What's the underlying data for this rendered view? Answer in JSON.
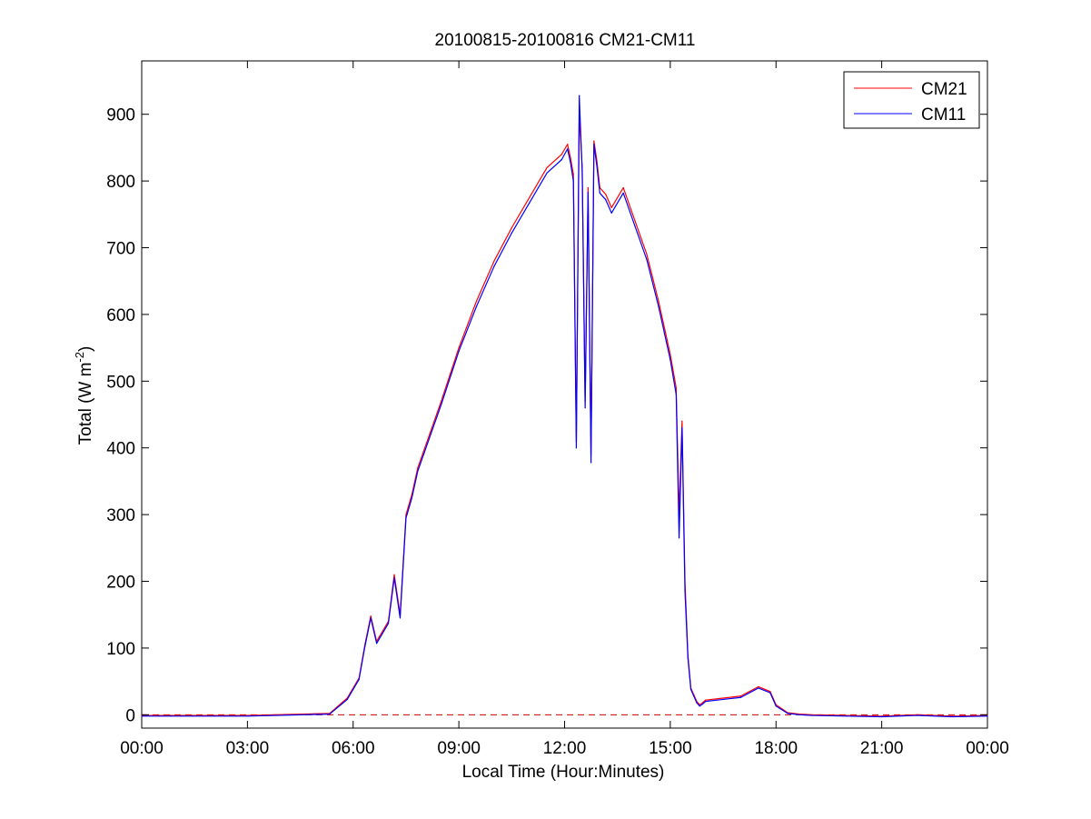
{
  "chart_data": {
    "type": "line",
    "title": "20100815-20100816 CM21-CM11",
    "xlabel": "Local Time (Hour:Minutes)",
    "ylabel": {
      "base": "Total (W m",
      "exp": "-2",
      "close": ")"
    },
    "xlim_hours": [
      0,
      24
    ],
    "ylim": [
      -20,
      980
    ],
    "x_ticks": [
      {
        "hour": 0,
        "label": "00:00"
      },
      {
        "hour": 3,
        "label": "03:00"
      },
      {
        "hour": 6,
        "label": "06:00"
      },
      {
        "hour": 9,
        "label": "09:00"
      },
      {
        "hour": 12,
        "label": "12:00"
      },
      {
        "hour": 15,
        "label": "15:00"
      },
      {
        "hour": 18,
        "label": "18:00"
      },
      {
        "hour": 21,
        "label": "21:00"
      },
      {
        "hour": 24,
        "label": "00:00"
      }
    ],
    "y_ticks": [
      0,
      100,
      200,
      300,
      400,
      500,
      600,
      700,
      800,
      900
    ],
    "grid": false,
    "legend_position": "top-right",
    "zero_line": {
      "value": 0,
      "color": "#cc0000",
      "style": "dashed"
    },
    "series": [
      {
        "name": "CM21",
        "color": "#ff0000",
        "x": [
          "00:00",
          "03:00",
          "05:20",
          "05:50",
          "06:10",
          "06:20",
          "06:30",
          "06:40",
          "06:50",
          "07:00",
          "07:10",
          "07:20",
          "07:30",
          "07:40",
          "07:50",
          "08:00",
          "08:30",
          "09:00",
          "09:30",
          "10:00",
          "10:30",
          "11:00",
          "11:30",
          "11:55",
          "12:05",
          "12:10",
          "12:15",
          "12:20",
          "12:25",
          "12:30",
          "12:35",
          "12:40",
          "12:45",
          "12:50",
          "12:55",
          "13:00",
          "13:10",
          "13:20",
          "13:40",
          "14:00",
          "14:20",
          "14:40",
          "15:00",
          "15:10",
          "15:15",
          "15:20",
          "15:25",
          "15:30",
          "15:35",
          "15:40",
          "15:45",
          "15:50",
          "15:55",
          "16:00",
          "16:30",
          "17:00",
          "17:30",
          "17:50",
          "18:00",
          "18:20",
          "18:40",
          "19:00",
          "20:00",
          "21:00",
          "22:00",
          "23:00",
          "24:00"
        ],
        "y": [
          -1,
          -1,
          2,
          25,
          55,
          105,
          148,
          110,
          125,
          140,
          210,
          150,
          300,
          330,
          370,
          395,
          470,
          550,
          620,
          680,
          730,
          775,
          820,
          840,
          855,
          835,
          810,
          410,
          900,
          820,
          470,
          790,
          390,
          860,
          830,
          790,
          780,
          760,
          790,
          740,
          690,
          620,
          540,
          490,
          300,
          440,
          200,
          90,
          40,
          30,
          20,
          15,
          18,
          22,
          25,
          28,
          42,
          35,
          15,
          3,
          1,
          0,
          -1,
          -2,
          0,
          -2,
          -1
        ]
      },
      {
        "name": "CM11",
        "color": "#0000ff",
        "x": [
          "00:00",
          "03:00",
          "05:20",
          "05:50",
          "06:10",
          "06:20",
          "06:30",
          "06:40",
          "06:50",
          "07:00",
          "07:10",
          "07:20",
          "07:30",
          "07:40",
          "07:50",
          "08:00",
          "08:30",
          "09:00",
          "09:30",
          "10:00",
          "10:30",
          "11:00",
          "11:30",
          "11:55",
          "12:05",
          "12:10",
          "12:15",
          "12:20",
          "12:25",
          "12:30",
          "12:35",
          "12:40",
          "12:45",
          "12:50",
          "12:55",
          "13:00",
          "13:10",
          "13:20",
          "13:40",
          "14:00",
          "14:20",
          "14:40",
          "15:00",
          "15:10",
          "15:15",
          "15:20",
          "15:25",
          "15:30",
          "15:35",
          "15:40",
          "15:45",
          "15:50",
          "15:55",
          "16:00",
          "16:30",
          "17:00",
          "17:30",
          "17:50",
          "18:00",
          "18:20",
          "18:40",
          "19:00",
          "20:00",
          "21:00",
          "22:00",
          "23:00",
          "24:00"
        ],
        "y": [
          -2,
          -2,
          1,
          23,
          53,
          102,
          145,
          107,
          122,
          137,
          205,
          145,
          295,
          325,
          365,
          390,
          465,
          545,
          612,
          672,
          722,
          767,
          812,
          832,
          848,
          828,
          800,
          400,
          928,
          815,
          460,
          783,
          378,
          855,
          822,
          782,
          772,
          752,
          782,
          732,
          682,
          612,
          532,
          480,
          265,
          430,
          185,
          85,
          38,
          28,
          18,
          13,
          16,
          20,
          23,
          26,
          40,
          33,
          13,
          2,
          0,
          -1,
          -2,
          -3,
          -1,
          -3,
          -2
        ]
      }
    ]
  }
}
